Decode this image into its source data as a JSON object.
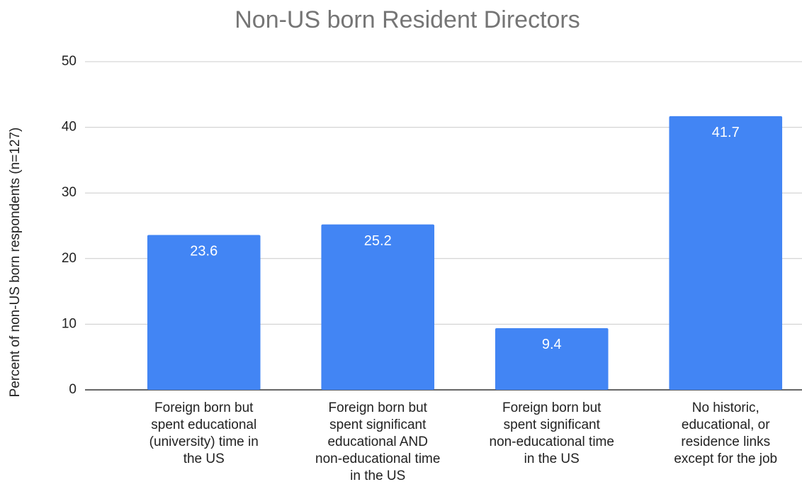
{
  "chart_data": {
    "type": "bar",
    "title": "Non-US born Resident Directors",
    "y_label": "Percent of non-US born respondents (n=127)",
    "categories": [
      [
        "Foreign born but",
        "spent educational",
        "(university) time in",
        "the US"
      ],
      [
        "Foreign born but",
        "spent significant",
        "educational AND",
        "non-educational time",
        "in the US"
      ],
      [
        "Foreign born but",
        "spent significant",
        "non-educational time",
        "in the US"
      ],
      [
        "No historic,",
        "educational, or",
        "residence links",
        "except for the job"
      ]
    ],
    "values": [
      23.6,
      25.2,
      9.4,
      41.7
    ],
    "color": "#4285f4",
    "ylim": [
      0,
      50
    ],
    "yticks": [
      0,
      10,
      20,
      30,
      40,
      50
    ],
    "grid": true
  }
}
